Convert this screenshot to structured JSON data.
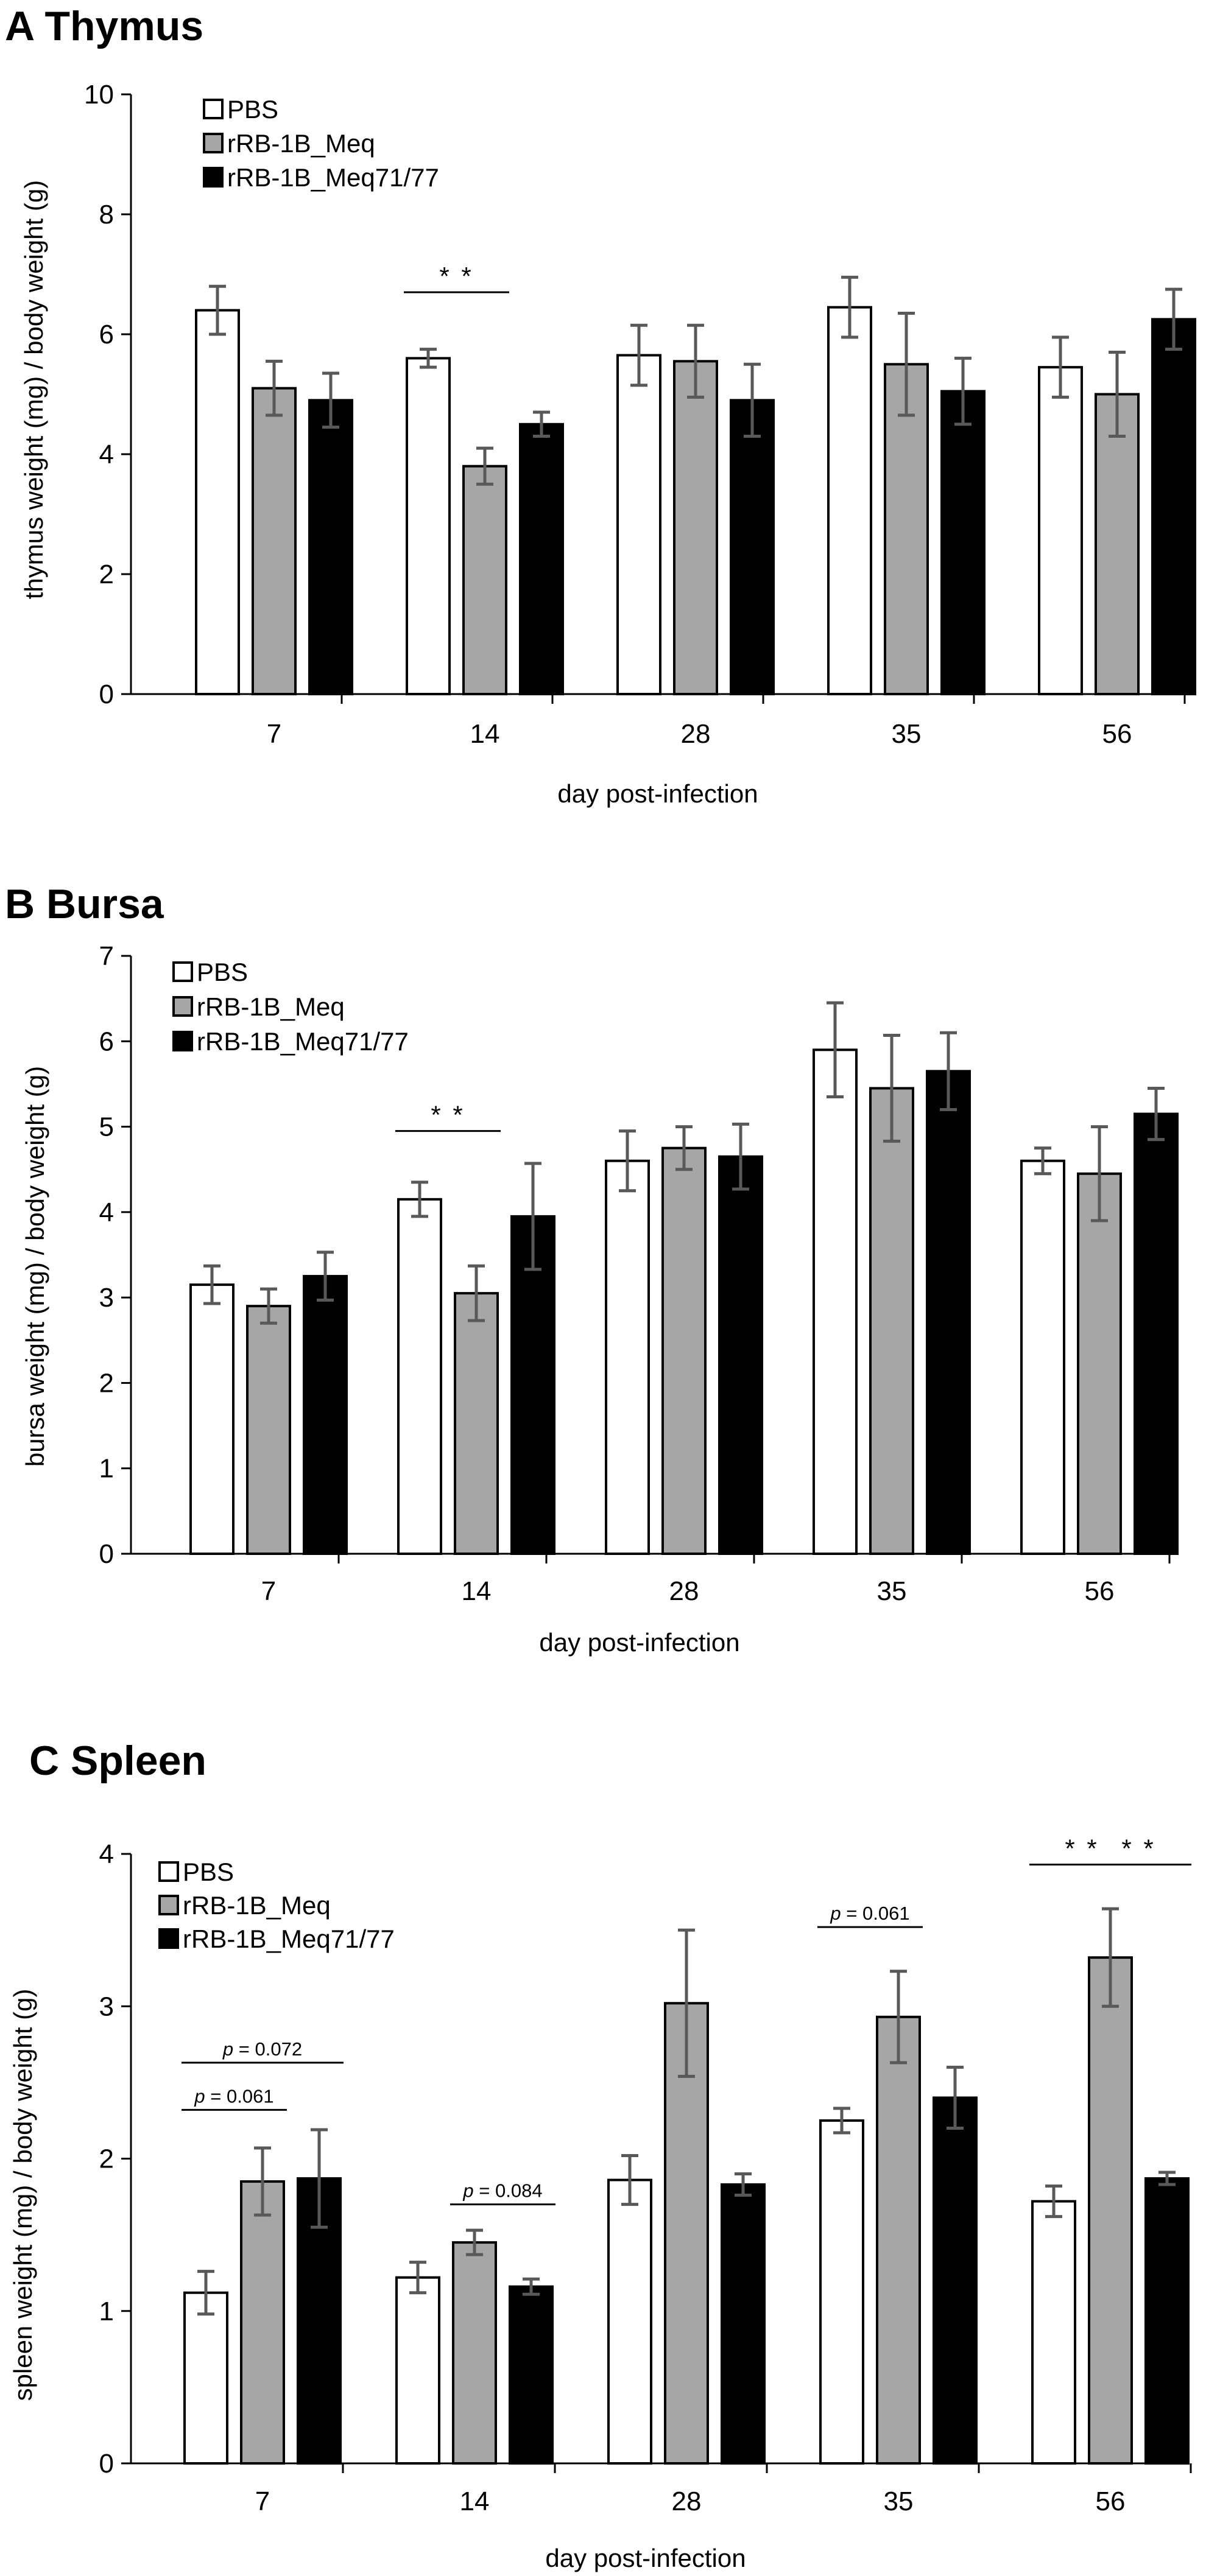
{
  "colors": {
    "PBS": "#ffffff",
    "rRB-1B_Meq": "#a6a6a6",
    "rRB-1B_Meq71/77": "#000000",
    "bar_outline": "#000000",
    "error_bar": "#595959"
  },
  "chart_data": [
    {
      "panel": "A",
      "title": "A Thymus",
      "type": "bar",
      "xlabel": "day post-infection",
      "ylabel": "thymus weight (mg) / body weight (g)",
      "ylim": [
        0,
        10
      ],
      "yticks": [
        0,
        2,
        4,
        6,
        8,
        10
      ],
      "categories": [
        "7",
        "14",
        "28",
        "35",
        "56"
      ],
      "legend": [
        "PBS",
        "rRB-1B_Meq",
        "rRB-1B_Meq71/77"
      ],
      "legend_position": "top-left",
      "series": [
        {
          "name": "PBS",
          "values": [
            6.4,
            5.6,
            5.65,
            6.45,
            5.45
          ],
          "errors": [
            0.4,
            0.15,
            0.5,
            0.5,
            0.5
          ]
        },
        {
          "name": "rRB-1B_Meq",
          "values": [
            5.1,
            3.8,
            5.55,
            5.5,
            5.0
          ],
          "errors": [
            0.45,
            0.3,
            0.6,
            0.85,
            0.7
          ]
        },
        {
          "name": "rRB-1B_Meq71/77",
          "values": [
            4.9,
            4.5,
            4.9,
            5.05,
            6.25
          ],
          "errors": [
            0.45,
            0.2,
            0.6,
            0.55,
            0.5
          ]
        }
      ],
      "annotations": [
        {
          "label": "* *",
          "category": "14",
          "from_series": 0,
          "to_series": 1,
          "y": 6.7
        }
      ]
    },
    {
      "panel": "B",
      "title": "B Bursa",
      "type": "bar",
      "xlabel": "day post-infection",
      "ylabel": "bursa weight (mg) / body weight (g)",
      "ylim": [
        0,
        7
      ],
      "yticks": [
        0,
        1,
        2,
        3,
        4,
        5,
        6,
        7
      ],
      "categories": [
        "7",
        "14",
        "28",
        "35",
        "56"
      ],
      "legend": [
        "PBS",
        "rRB-1B_Meq",
        "rRB-1B_Meq71/77"
      ],
      "legend_position": "top-left",
      "series": [
        {
          "name": "PBS",
          "values": [
            3.15,
            4.15,
            4.6,
            5.9,
            4.6
          ],
          "errors": [
            0.22,
            0.2,
            0.35,
            0.55,
            0.15
          ]
        },
        {
          "name": "rRB-1B_Meq",
          "values": [
            2.9,
            3.05,
            4.75,
            5.45,
            4.45
          ],
          "errors": [
            0.2,
            0.32,
            0.25,
            0.62,
            0.55
          ]
        },
        {
          "name": "rRB-1B_Meq71/77",
          "values": [
            3.25,
            3.95,
            4.65,
            5.65,
            5.15
          ],
          "errors": [
            0.28,
            0.62,
            0.38,
            0.45,
            0.3
          ]
        }
      ],
      "annotations": [
        {
          "label": "* *",
          "category": "14",
          "from_series": 0,
          "to_series": 1,
          "y": 4.95
        }
      ]
    },
    {
      "panel": "C",
      "title": "C Spleen",
      "type": "bar",
      "xlabel": "day post-infection",
      "ylabel": "spleen weight (mg) / body weight (g)",
      "ylim": [
        0,
        4
      ],
      "yticks": [
        0,
        1,
        2,
        3,
        4
      ],
      "categories": [
        "7",
        "14",
        "28",
        "35",
        "56"
      ],
      "legend": [
        "PBS",
        "rRB-1B_Meq",
        "rRB-1B_Meq71/77"
      ],
      "legend_position": "top-left",
      "series": [
        {
          "name": "PBS",
          "values": [
            1.12,
            1.22,
            1.86,
            2.25,
            1.72
          ],
          "errors": [
            0.14,
            0.1,
            0.16,
            0.08,
            0.1
          ]
        },
        {
          "name": "rRB-1B_Meq",
          "values": [
            1.85,
            1.45,
            3.02,
            2.93,
            3.32
          ],
          "errors": [
            0.22,
            0.08,
            0.48,
            0.3,
            0.32
          ]
        },
        {
          "name": "rRB-1B_Meq71/77",
          "values": [
            1.87,
            1.16,
            1.83,
            2.4,
            1.87
          ],
          "errors": [
            0.32,
            0.05,
            0.07,
            0.2,
            0.04
          ]
        }
      ],
      "annotations": [
        {
          "label": "p = 0.072",
          "category": "7",
          "from_series": 0,
          "to_series": 2,
          "y": 2.63
        },
        {
          "label": "p = 0.061",
          "category": "7",
          "from_series": 0,
          "to_series": 1,
          "y": 2.32
        },
        {
          "label": "p = 0.084",
          "category": "14",
          "from_series": 1,
          "to_series": 2,
          "y": 1.7
        },
        {
          "label": "p = 0.061",
          "category": "35",
          "from_series": 0,
          "to_series": 1,
          "y": 3.52
        },
        {
          "label": "* *",
          "category": "56",
          "from_series": 0,
          "to_series": 1,
          "y": 3.93
        },
        {
          "label": "* *",
          "category": "56",
          "from_series": 1,
          "to_series": 2,
          "y": 3.93
        }
      ]
    }
  ]
}
